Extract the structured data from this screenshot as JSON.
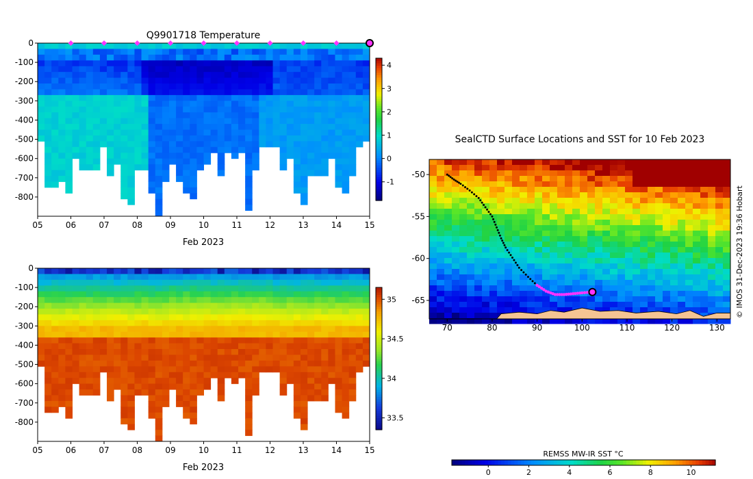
{
  "chart_data": [
    {
      "id": "temperature",
      "type": "heatmap",
      "title": "Q9901718  Temperature",
      "xlabel": "Feb 2023",
      "x_ticks": [
        "05",
        "06",
        "07",
        "08",
        "09",
        "10",
        "11",
        "12",
        "13",
        "14",
        "15"
      ],
      "xlim": [
        5,
        15
      ],
      "y_ticks": [
        "0",
        "-100",
        "-200",
        "-300",
        "-400",
        "-500",
        "-600",
        "-700",
        "-800"
      ],
      "ylim": [
        -900,
        0
      ],
      "colorbar": {
        "ticks": [
          "4",
          "3",
          "2",
          "1",
          "0",
          "-1"
        ],
        "range": [
          -1.8,
          4.3
        ]
      },
      "profile_markers_days": [
        6,
        7,
        8,
        9,
        10,
        11,
        12,
        13,
        14,
        15
      ],
      "profile_depths": [
        500,
        730,
        730,
        700,
        760,
        590,
        640,
        640,
        640,
        540,
        680,
        620,
        790,
        820,
        660,
        660,
        780,
        880,
        700,
        620,
        700,
        770,
        810,
        640,
        610,
        560,
        680,
        560,
        600,
        570,
        860,
        660,
        540,
        520,
        540,
        660,
        590,
        760,
        840,
        670,
        690,
        690,
        600,
        730,
        780,
        680,
        530,
        490
      ],
      "deep_profile_value_bands": [
        {
          "from_day": 5.0,
          "to_day": 8.3,
          "value": 0.8
        },
        {
          "from_day": 8.3,
          "to_day": 11.6,
          "value": -0.2
        },
        {
          "from_day": 11.6,
          "to_day": 15.0,
          "value": 0.2
        }
      ]
    },
    {
      "id": "salinity",
      "type": "heatmap",
      "title": "",
      "xlabel": "Feb 2023",
      "x_ticks": [
        "05",
        "06",
        "07",
        "08",
        "09",
        "10",
        "11",
        "12",
        "13",
        "14",
        "15"
      ],
      "xlim": [
        5,
        15
      ],
      "y_ticks": [
        "0",
        "-100",
        "-200",
        "-300",
        "-400",
        "-500",
        "-600",
        "-700",
        "-800"
      ],
      "ylim": [
        -900,
        0
      ],
      "colorbar": {
        "ticks": [
          "35",
          "34.5",
          "34",
          "33.5"
        ],
        "range": [
          33.35,
          35.15
        ]
      },
      "surface_value": 33.8,
      "deep_value": 34.75
    },
    {
      "id": "sst_map",
      "type": "heatmap",
      "title": "SealCTD Surface Locations and SST for 10 Feb 2023",
      "x_ticks": [
        "70",
        "80",
        "90",
        "100",
        "110",
        "120",
        "130"
      ],
      "xlim": [
        66,
        133
      ],
      "y_ticks": [
        "-50",
        "-55",
        "-60",
        "-65"
      ],
      "ylim": [
        -67.2,
        -48.2
      ],
      "colorbar_label": "REMSS MW-IR SST °C",
      "colorbar": {
        "ticks": [
          "0",
          "2",
          "4",
          "6",
          "8",
          "10"
        ],
        "range": [
          -1.8,
          11.2
        ]
      },
      "credit": "© IMOS 31-Dec-2023 19:36 Hobart",
      "track": [
        [
          70.0,
          -50.0
        ],
        [
          71.5,
          -50.6
        ],
        [
          73.0,
          -51.1
        ],
        [
          75.0,
          -51.9
        ],
        [
          77.0,
          -52.8
        ],
        [
          78.5,
          -53.9
        ],
        [
          80.0,
          -55.0
        ],
        [
          81.0,
          -56.3
        ],
        [
          82.0,
          -57.6
        ],
        [
          83.0,
          -58.7
        ],
        [
          84.5,
          -59.9
        ],
        [
          86.0,
          -61.1
        ],
        [
          88.0,
          -62.2
        ],
        [
          90.0,
          -63.2
        ],
        [
          92.0,
          -63.9
        ],
        [
          94.0,
          -64.3
        ],
        [
          96.0,
          -64.3
        ],
        [
          98.0,
          -64.2
        ],
        [
          100.0,
          -64.1
        ],
        [
          102.3,
          -64.0
        ]
      ],
      "recent_track_from_index": 13,
      "current_position": [
        102.3,
        -64.0
      ]
    }
  ]
}
